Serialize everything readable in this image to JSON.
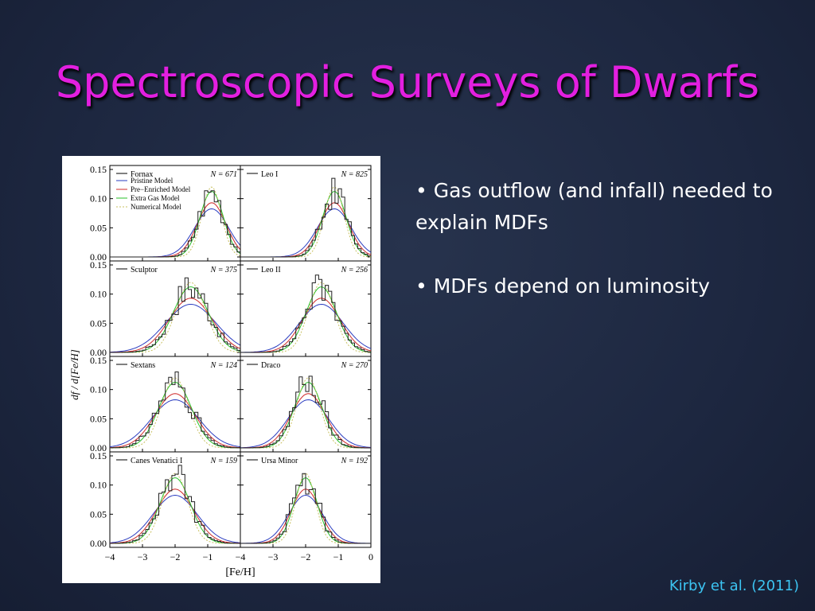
{
  "slide": {
    "title": "Spectroscopic Surveys of Dwarfs",
    "bullets": [
      "• Gas outflow (and infall) needed to explain MDFs",
      "• MDFs depend on luminosity"
    ],
    "citation": "Kirby et al. (2011)"
  },
  "figure": {
    "y_label": "df / d[Fe/H]",
    "x_label": "[Fe/H]",
    "legend": [
      "Pristine Model",
      "Pre−Enriched Model",
      "Extra Gas Model",
      "Numerical Model"
    ],
    "yticks": [
      "0.15",
      "0.10",
      "0.05",
      "0.00"
    ],
    "xticks": [
      "−4",
      "−3",
      "−2",
      "−1",
      "0"
    ],
    "panels": [
      {
        "name": "Fornax",
        "n": "N = 671"
      },
      {
        "name": "Leo I",
        "n": "N = 825"
      },
      {
        "name": "Sculptor",
        "n": "N = 375"
      },
      {
        "name": "Leo II",
        "n": "N = 256"
      },
      {
        "name": "Sextans",
        "n": "N = 124"
      },
      {
        "name": "Draco",
        "n": "N = 270"
      },
      {
        "name": "Canes Venatici I",
        "n": "N = 159"
      },
      {
        "name": "Ursa Minor",
        "n": "N = 192"
      }
    ]
  }
}
